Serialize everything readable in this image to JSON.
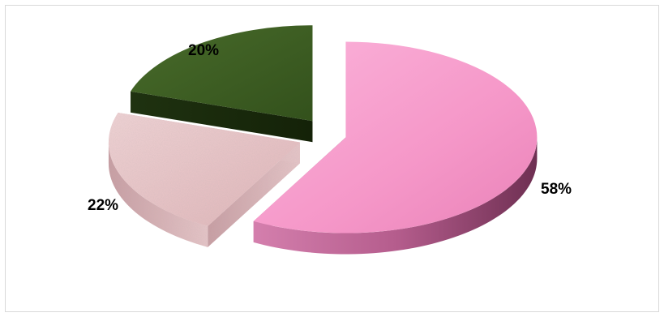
{
  "chart_data": {
    "type": "pie",
    "style": "3d-exploded",
    "title": "",
    "legend": "none",
    "slices": [
      {
        "value": 58,
        "label": "58%",
        "color": "#f798c9",
        "side_color": "#b05a8a",
        "texture": "none"
      },
      {
        "value": 22,
        "label": "22%",
        "color": "#e9c1c4",
        "side_color": "#c79aa0",
        "texture": "granite"
      },
      {
        "value": 20,
        "label": "20%",
        "color": "#3d5c22",
        "side_color": "#203311",
        "texture": "none"
      }
    ]
  }
}
